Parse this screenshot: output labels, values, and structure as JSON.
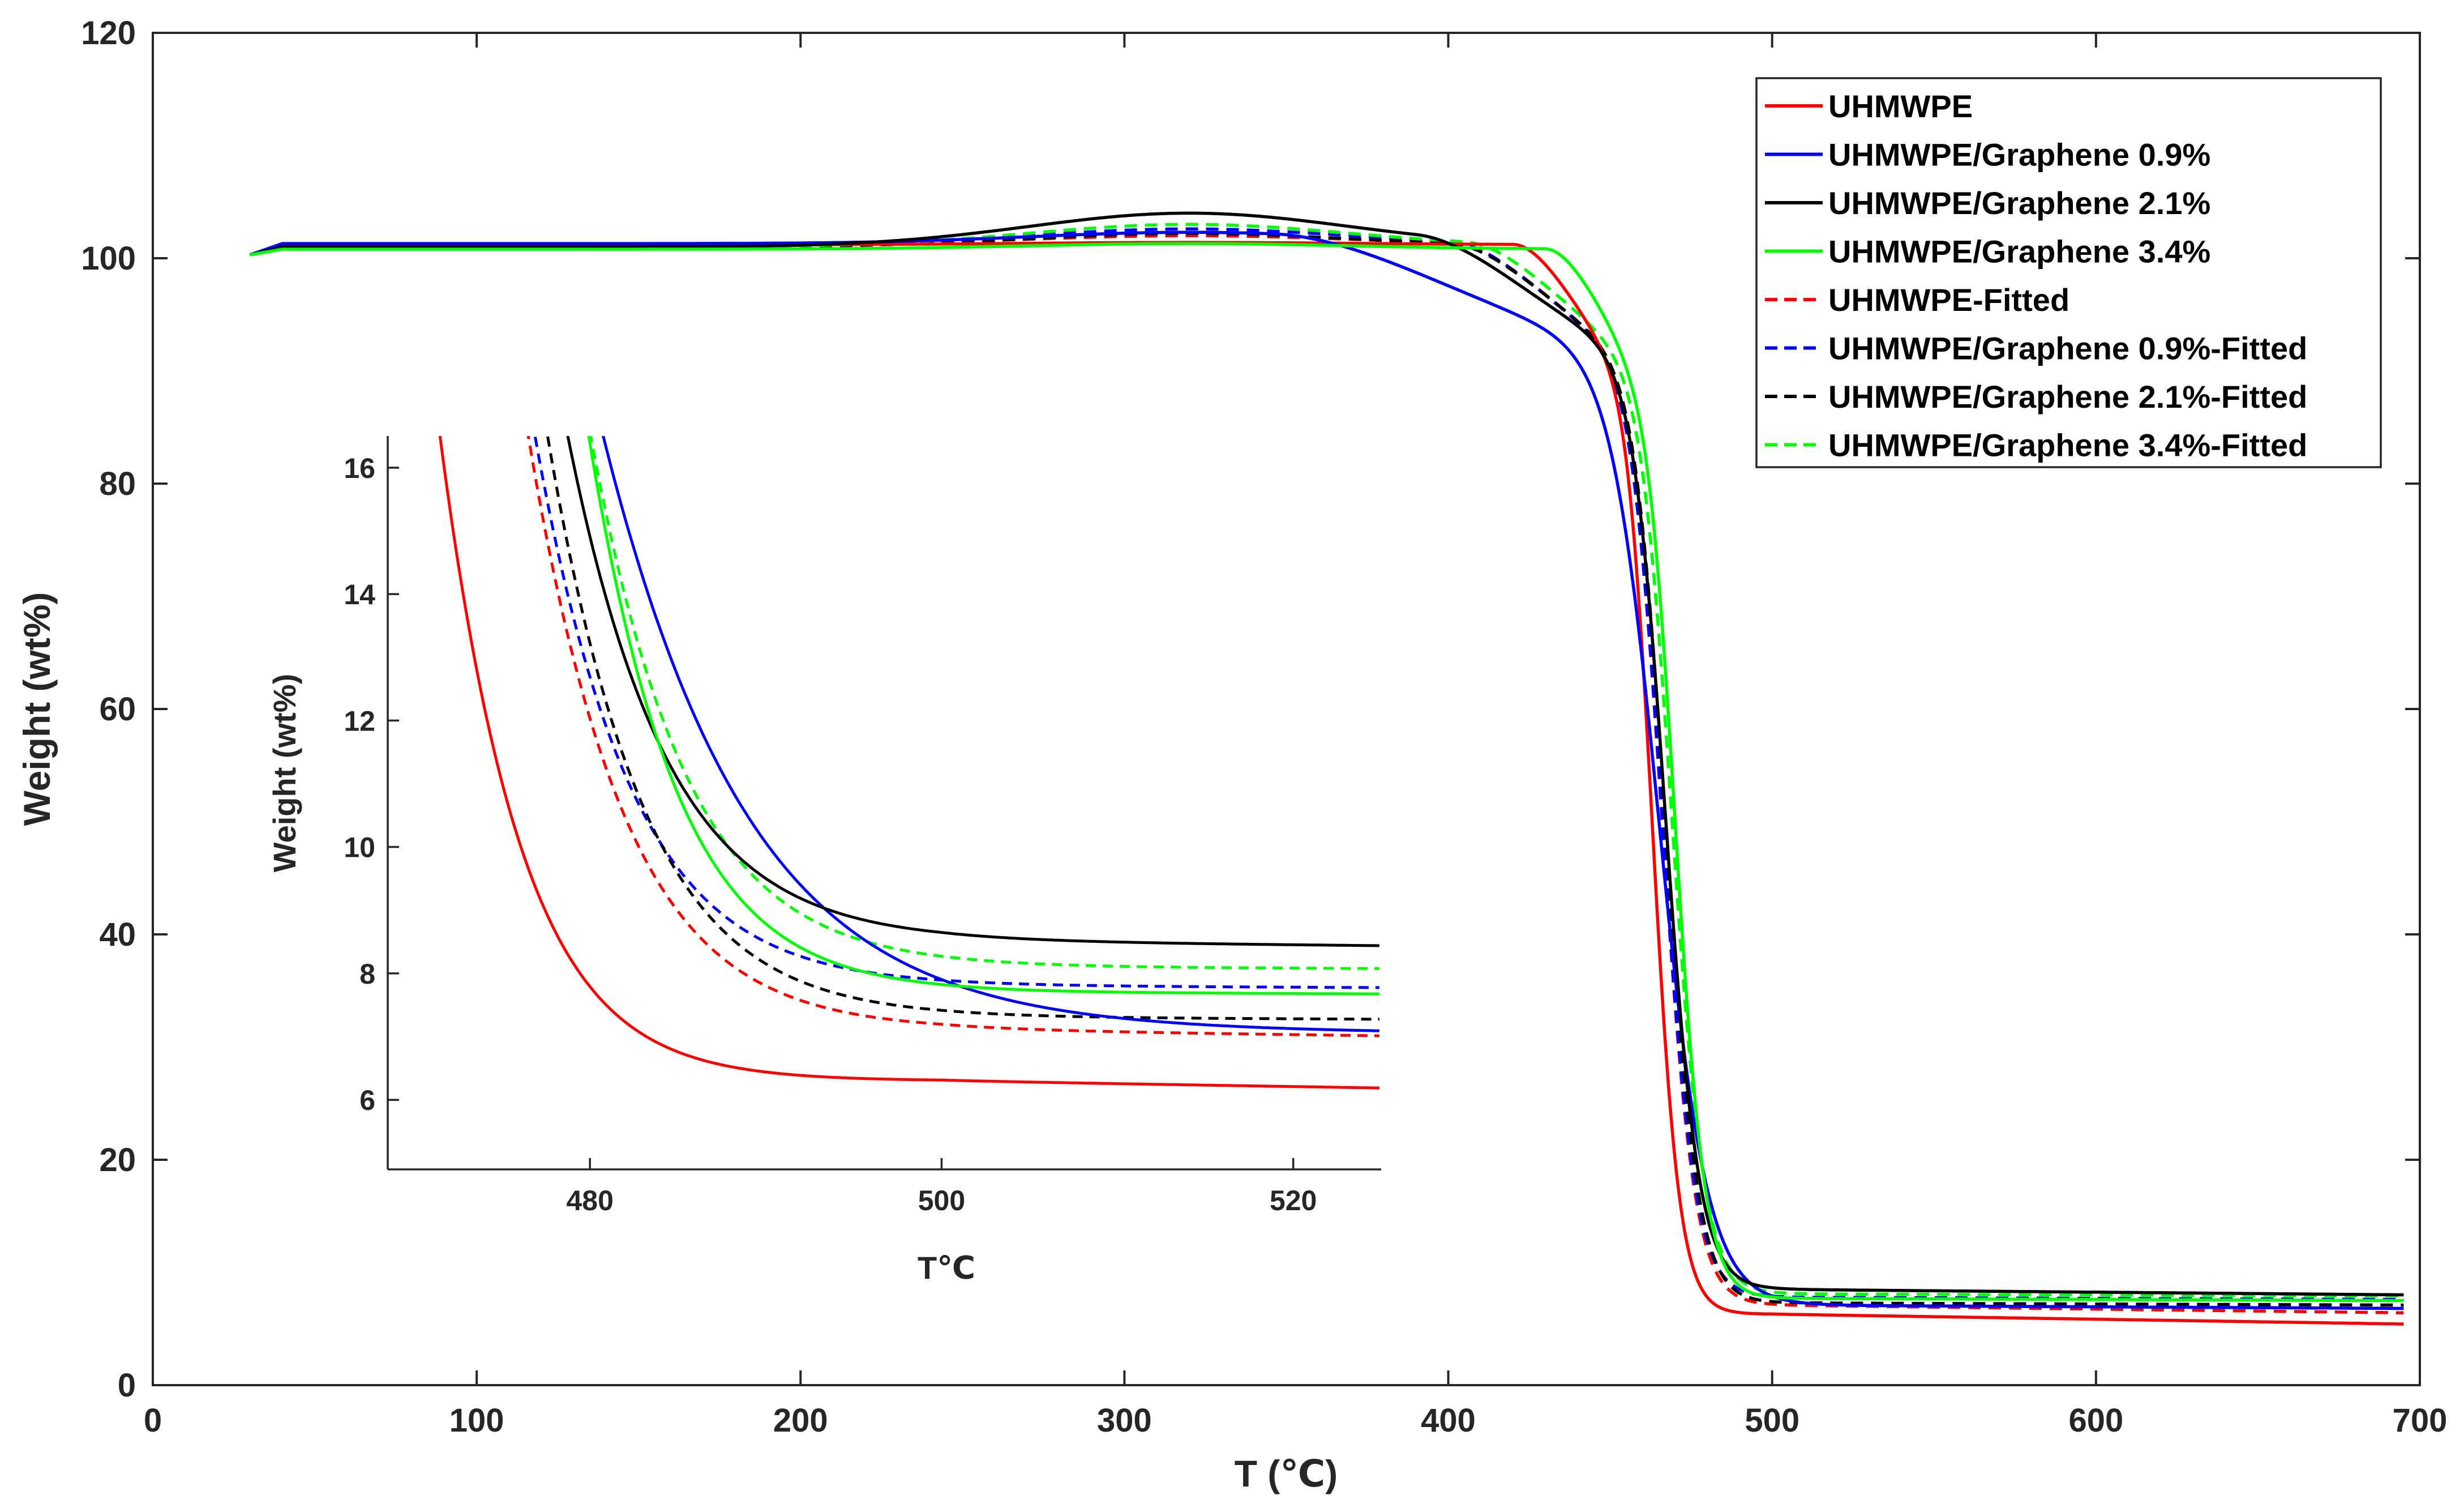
{
  "chart_data": [
    {
      "type": "line",
      "name": "main",
      "xlabel": "T (℃)",
      "ylabel": "Weight (wt%)",
      "xlim": [
        0,
        700
      ],
      "ylim": [
        0,
        120
      ],
      "xticks": [
        "0",
        "100",
        "200",
        "300",
        "400",
        "500",
        "600",
        "700"
      ],
      "yticks": [
        "0",
        "20",
        "40",
        "60",
        "80",
        "100",
        "120"
      ],
      "legend_position": "top-right",
      "series": [
        {
          "name": "UHMWPE",
          "color": "#ff0000",
          "dash": false,
          "tmid": 463,
          "width": 4.2,
          "residue": 6.3,
          "endResidue": 5.4,
          "plateau": 101.2,
          "hump": 0.2,
          "dropStart": 420
        },
        {
          "name": "UHMWPE/Graphene 0.9%",
          "color": "#0000ff",
          "dash": false,
          "tmid": 465,
          "width": 7.5,
          "residue": 7.1,
          "endResidue": 6.8,
          "plateau": 101.3,
          "hump": 1.0,
          "dropStart": 345
        },
        {
          "name": "UHMWPE/Graphene 2.1%",
          "color": "#000000",
          "dash": false,
          "tmid": 467,
          "width": 5.2,
          "residue": 8.5,
          "endResidue": 8.0,
          "plateau": 101.0,
          "hump": 3.0,
          "dropStart": 390
        },
        {
          "name": "UHMWPE/Graphene 3.4%",
          "color": "#00ff00",
          "dash": false,
          "tmid": 470,
          "width": 4.6,
          "residue": 7.7,
          "endResidue": 7.5,
          "plateau": 100.8,
          "hump": 0.5,
          "dropStart": 430
        },
        {
          "name": "UHMWPE-Fitted",
          "color": "#ff0000",
          "dash": true,
          "tmid": 466,
          "width": 5.0,
          "residue": 7.1,
          "endResidue": 6.4,
          "plateau": 101.2,
          "hump": 0.8,
          "dropStart": 400
        },
        {
          "name": "UHMWPE/Graphene 0.9%-Fitted",
          "color": "#0000ff",
          "dash": true,
          "tmid": 466,
          "width": 5.0,
          "residue": 7.8,
          "endResidue": 7.6,
          "plateau": 101.1,
          "hump": 1.5,
          "dropStart": 400
        },
        {
          "name": "UHMWPE/Graphene 2.1%-Fitted",
          "color": "#000000",
          "dash": true,
          "tmid": 467,
          "width": 5.0,
          "residue": 7.3,
          "endResidue": 7.1,
          "plateau": 101.0,
          "hump": 1.2,
          "dropStart": 400
        },
        {
          "name": "UHMWPE/Graphene 3.4%-Fitted",
          "color": "#00ff00",
          "dash": true,
          "tmid": 469,
          "width": 5.0,
          "residue": 8.1,
          "endResidue": 7.9,
          "plateau": 101.0,
          "hump": 2.0,
          "dropStart": 405
        }
      ]
    },
    {
      "type": "line",
      "name": "inset",
      "xlabel": "T℃",
      "ylabel": "Weight (wt%)",
      "xlim": [
        468.5,
        525
      ],
      "ylim": [
        4.9,
        16.5
      ],
      "xticks": [
        "480",
        "500",
        "520"
      ],
      "yticks": [
        "6",
        "8",
        "10",
        "12",
        "14",
        "16"
      ],
      "series_ref": "same series as main chart, zoomed to 468.5–525 ℃"
    }
  ]
}
